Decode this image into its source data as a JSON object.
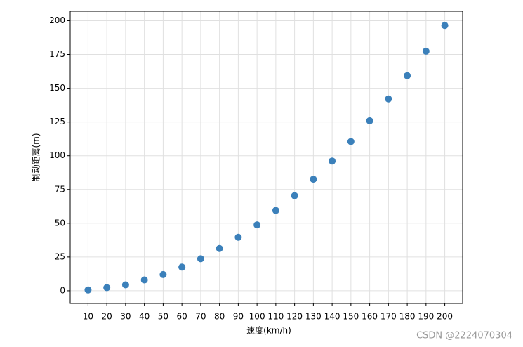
{
  "chart_data": {
    "type": "scatter",
    "x_label": "速度(km/h)",
    "y_label": "制动距离(m)",
    "x": [
      10,
      20,
      30,
      40,
      50,
      60,
      70,
      80,
      90,
      100,
      110,
      120,
      130,
      140,
      150,
      160,
      170,
      180,
      190,
      200
    ],
    "values": [
      0.6,
      2.3,
      4.4,
      8,
      12,
      17.5,
      23.7,
      31.3,
      39.6,
      48.8,
      59.5,
      70.4,
      82.6,
      96.1,
      110.5,
      125.9,
      142.1,
      159.3,
      177.4,
      196.5
    ],
    "color": "#3b80ba",
    "xlim": [
      0.5,
      209.5
    ],
    "ylim": [
      -9.4,
      207
    ],
    "xticks": [
      10,
      20,
      30,
      40,
      50,
      60,
      70,
      80,
      90,
      100,
      110,
      120,
      130,
      140,
      150,
      160,
      170,
      180,
      190,
      200
    ],
    "yticks": [
      0,
      25,
      50,
      75,
      100,
      125,
      150,
      175,
      200
    ],
    "grid": true,
    "watermark": "CSDN @2224070304"
  }
}
